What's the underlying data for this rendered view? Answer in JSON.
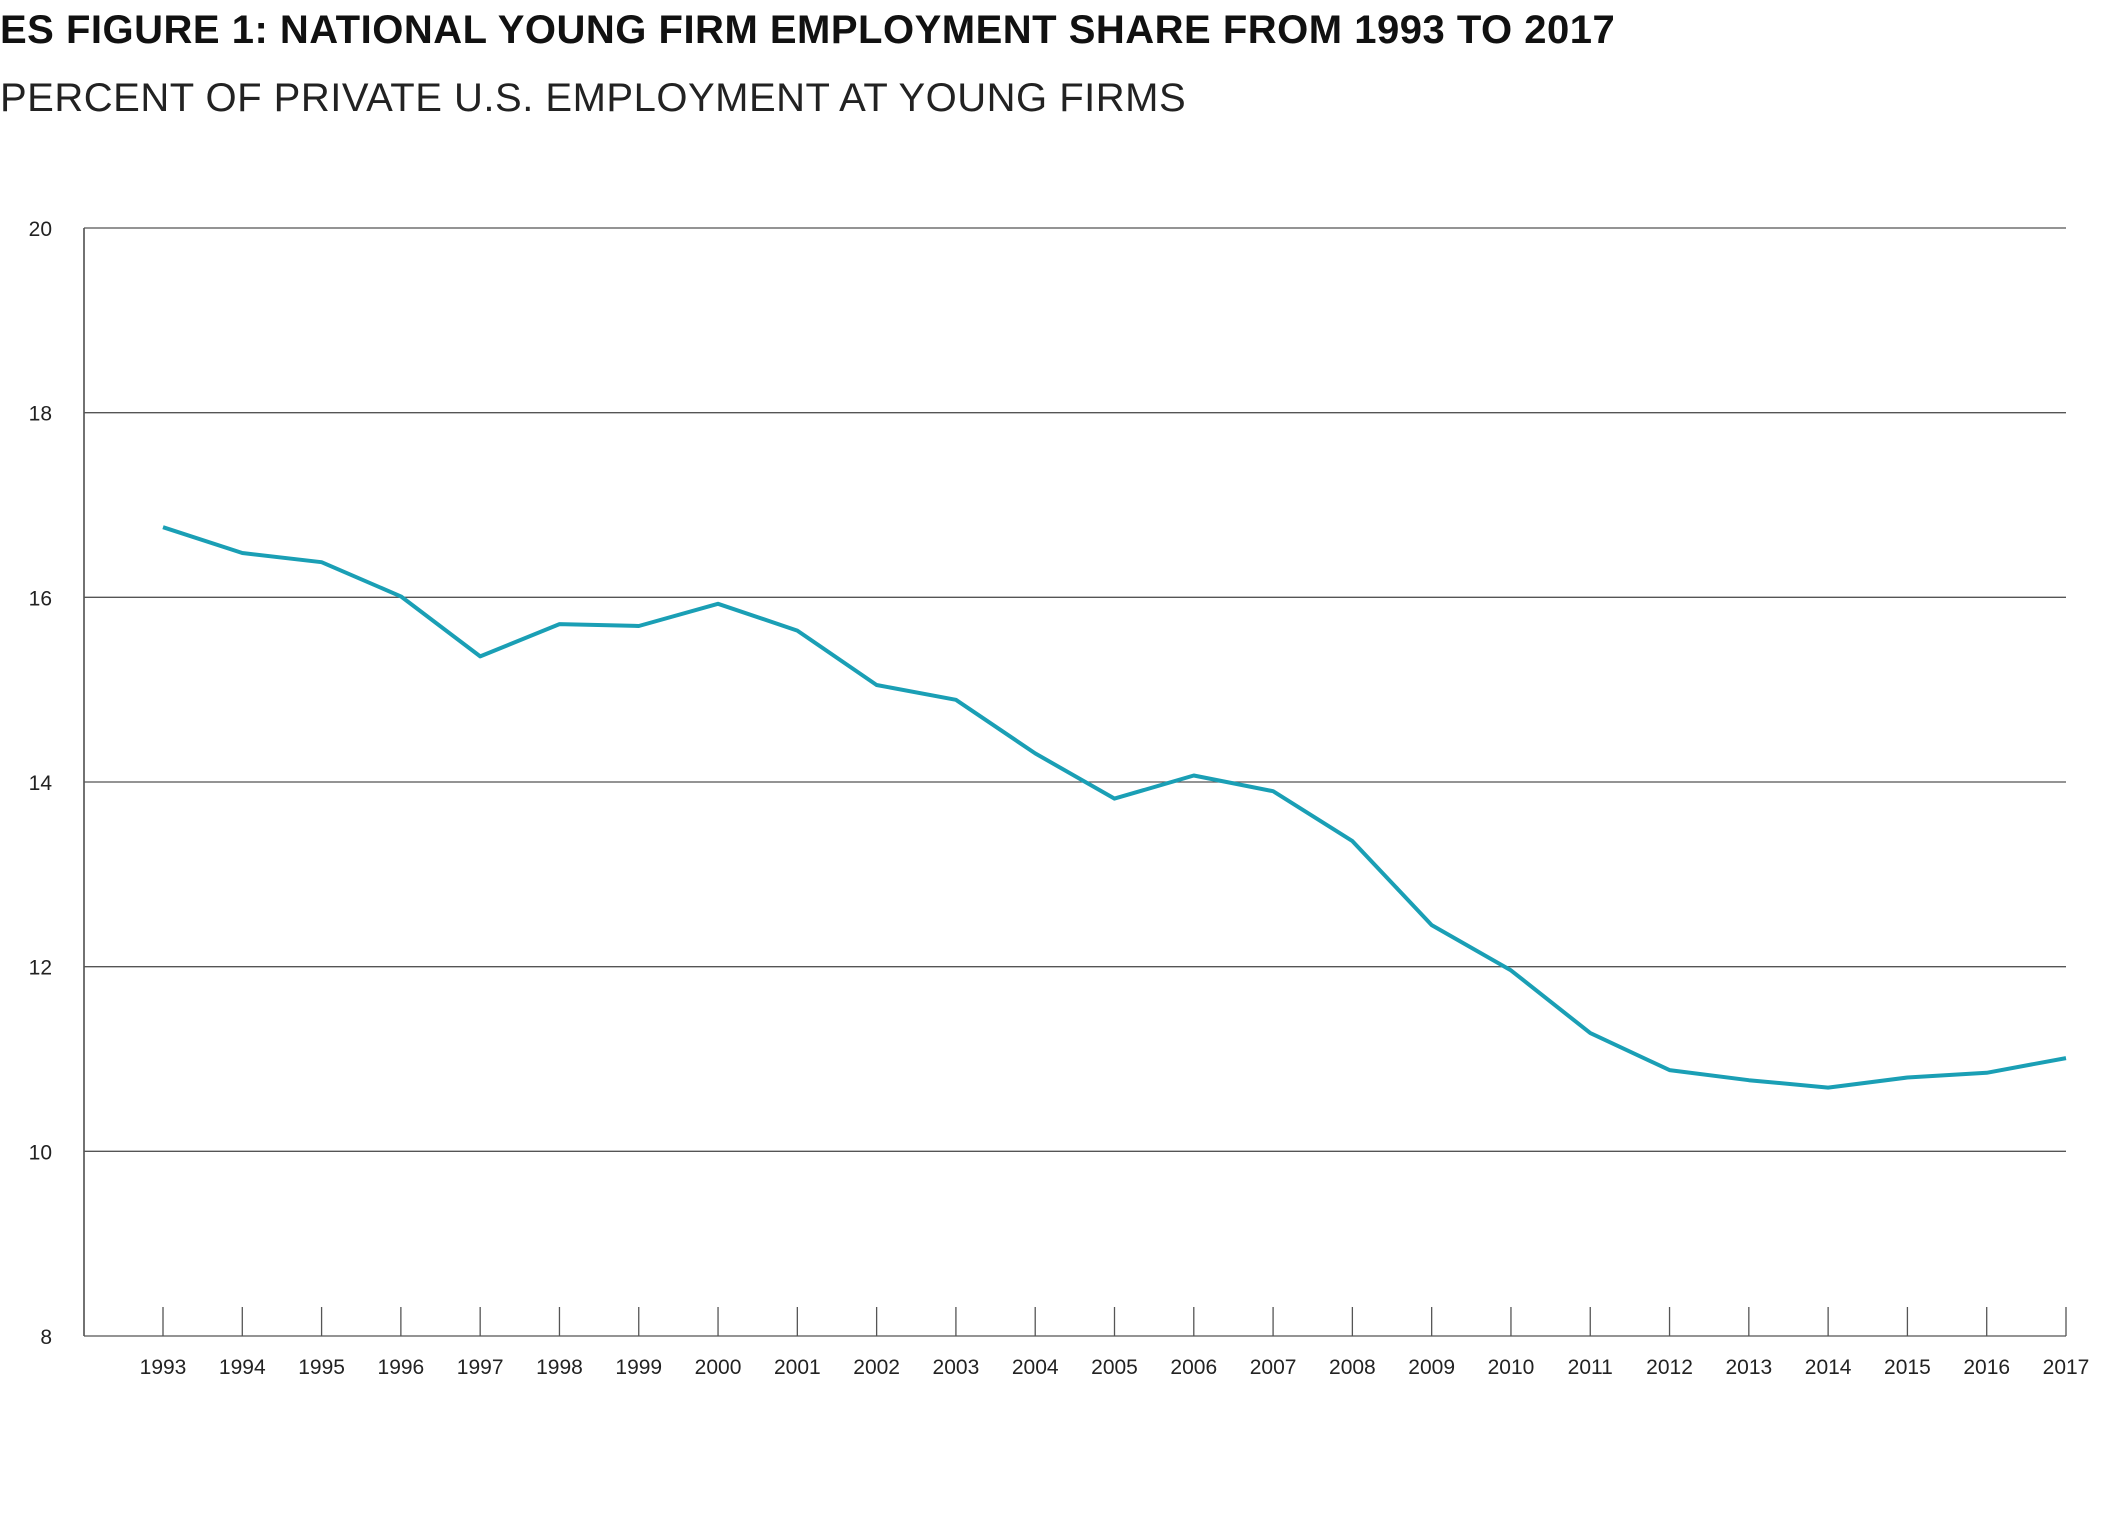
{
  "chart_data": {
    "type": "line",
    "title": "ES FIGURE 1: NATIONAL YOUNG FIRM EMPLOYMENT SHARE FROM 1993 TO 2017",
    "subtitle": "PERCENT OF PRIVATE U.S. EMPLOYMENT AT YOUNG FIRMS",
    "xlabel": "",
    "ylabel": "",
    "ylim": [
      8,
      20
    ],
    "yticks": [
      8,
      10,
      12,
      14,
      16,
      18,
      20
    ],
    "grid": true,
    "x": [
      "1993",
      "1994",
      "1995",
      "1996",
      "1997",
      "1998",
      "1999",
      "2000",
      "2001",
      "2002",
      "2003",
      "2004",
      "2005",
      "2006",
      "2007",
      "2008",
      "2009",
      "2010",
      "2011",
      "2012",
      "2013",
      "2014",
      "2015",
      "2016",
      "2017"
    ],
    "series": [
      {
        "name": "Young firm employment share",
        "color": "#1a9fb5",
        "values": [
          16.76,
          16.48,
          16.38,
          16.01,
          15.36,
          15.71,
          15.69,
          15.93,
          15.64,
          15.05,
          14.89,
          14.31,
          13.82,
          14.07,
          13.9,
          13.36,
          12.45,
          11.96,
          11.28,
          10.88,
          10.77,
          10.69,
          10.8,
          10.85,
          11.01
        ]
      }
    ]
  }
}
